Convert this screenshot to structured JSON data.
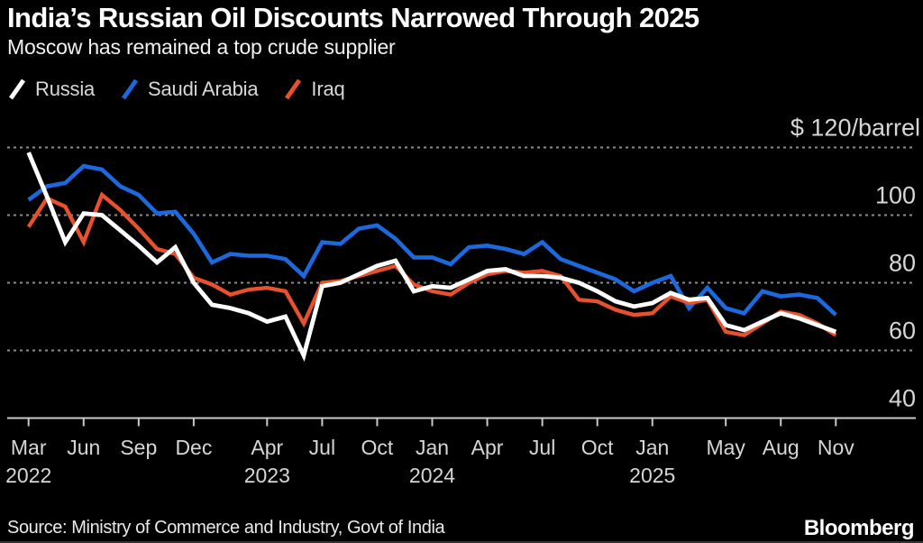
{
  "header": {
    "title": "India’s Russian Oil Discounts Narrowed Through 2025",
    "subtitle": "Moscow has remained a top crude supplier"
  },
  "legend": [
    {
      "label": "Russia",
      "color": "#ffffff"
    },
    {
      "label": "Saudi Arabia",
      "color": "#1c69de"
    },
    {
      "label": "Iraq",
      "color": "#e8512b"
    }
  ],
  "footer": {
    "source": "Source: Ministry of Commerce and Industry, Govt of India",
    "brand": "Bloomberg"
  },
  "colors": {
    "background": "#000000",
    "gridline": "#8c8c8c",
    "axis": "#c9c9c9",
    "tick_text": "#d6d6d6"
  },
  "chart_data": {
    "type": "line",
    "title": "India’s Russian Oil Discounts Narrowed Through 2025",
    "xlabel": "",
    "ylabel": "$/barrel",
    "grid": "dashed-horizontal",
    "legend_position": "top-left",
    "ylim": [
      40,
      120
    ],
    "x_start": "2022-03",
    "x_end": "2025-11",
    "interval": "monthly",
    "y_axis": {
      "top_label": "$ 120/barrel",
      "gridline_values": [
        120,
        100,
        80,
        60
      ],
      "label_values": [
        100,
        80,
        60,
        40
      ],
      "min": 40,
      "max": 120
    },
    "x_axis": {
      "months_total": 45,
      "ticks": [
        {
          "m": 0,
          "label": "Mar",
          "year": "2022"
        },
        {
          "m": 3,
          "label": "Jun"
        },
        {
          "m": 6,
          "label": "Sep"
        },
        {
          "m": 9,
          "label": "Dec"
        },
        {
          "m": 13,
          "label": "Apr",
          "year": "2023"
        },
        {
          "m": 16,
          "label": "Jul"
        },
        {
          "m": 19,
          "label": "Oct"
        },
        {
          "m": 22,
          "label": "Jan",
          "year": "2024"
        },
        {
          "m": 25,
          "label": "Apr"
        },
        {
          "m": 28,
          "label": "Jul"
        },
        {
          "m": 31,
          "label": "Oct"
        },
        {
          "m": 34,
          "label": "Jan",
          "year": "2025"
        },
        {
          "m": 38,
          "label": "May"
        },
        {
          "m": 41,
          "label": "Aug"
        },
        {
          "m": 44,
          "label": "Nov"
        }
      ]
    },
    "draw_order": [
      1,
      2,
      0
    ],
    "series": [
      {
        "name": "Russia",
        "color": "#ffffff",
        "width": 4.8,
        "values": [
          118.5,
          105.5,
          92,
          100.5,
          100,
          95.5,
          91,
          86,
          90.5,
          80,
          73.5,
          72.5,
          71,
          68.5,
          70,
          58.5,
          79,
          80,
          82.5,
          85,
          86.5,
          77.5,
          79,
          78.5,
          81,
          83.5,
          84,
          82,
          82,
          81.5,
          80,
          77.5,
          74.5,
          73,
          74,
          77,
          75,
          75.5,
          67.5,
          66,
          68.5,
          71,
          69.5,
          67.5,
          65.5
        ]
      },
      {
        "name": "Saudi Arabia",
        "color": "#1c69de",
        "width": 4.6,
        "values": [
          104.5,
          108.5,
          109.5,
          114.5,
          113.5,
          108.5,
          106,
          100.5,
          101,
          94.5,
          86,
          88.5,
          88,
          88,
          87,
          82,
          92,
          91.5,
          96,
          97,
          93,
          87.5,
          87.5,
          85.5,
          90.5,
          91,
          90,
          88.5,
          92,
          87,
          85,
          83,
          81,
          77.5,
          80,
          82,
          72.5,
          78.5,
          72.5,
          71,
          77.5,
          76,
          76.5,
          75.5,
          70.5
        ]
      },
      {
        "name": "Iraq",
        "color": "#e8512b",
        "width": 4.4,
        "values": [
          96.5,
          105,
          102.5,
          92,
          106,
          101.5,
          96,
          90,
          88.5,
          81.5,
          79.5,
          76.5,
          78,
          78.5,
          77.5,
          68,
          80,
          80.5,
          82,
          83.5,
          85,
          79.5,
          77.5,
          76.5,
          80,
          82.5,
          83.5,
          83,
          83.5,
          82,
          75,
          74.5,
          72,
          70.5,
          71,
          76,
          74,
          75,
          65.5,
          64.5,
          68,
          71.5,
          70.5,
          68,
          64.5
        ]
      }
    ]
  }
}
